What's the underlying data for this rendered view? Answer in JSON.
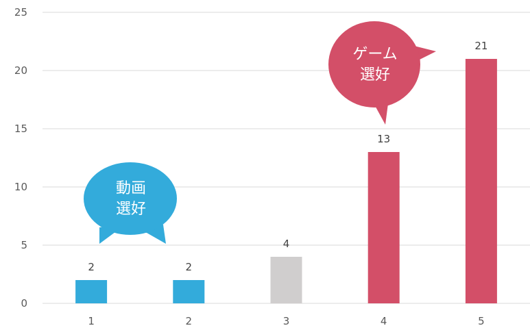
{
  "chart_data": {
    "type": "bar",
    "categories": [
      "1",
      "2",
      "3",
      "4",
      "5"
    ],
    "values": [
      2,
      2,
      4,
      13,
      21
    ],
    "bar_colors": [
      "#33ABDB",
      "#33ABDB",
      "#D0CECE",
      "#D34F68",
      "#D34F68"
    ],
    "ylim": [
      0,
      25
    ],
    "yticks": [
      0,
      5,
      10,
      15,
      20,
      25
    ],
    "grid": true,
    "legend": "none",
    "data_labels": true,
    "title": "",
    "xlabel": "",
    "ylabel": ""
  },
  "callouts": [
    {
      "lines": [
        "動画",
        "選好"
      ],
      "color": "#33ABDB"
    },
    {
      "lines": [
        "ゲーム",
        "選好"
      ],
      "color": "#D34F68"
    }
  ]
}
